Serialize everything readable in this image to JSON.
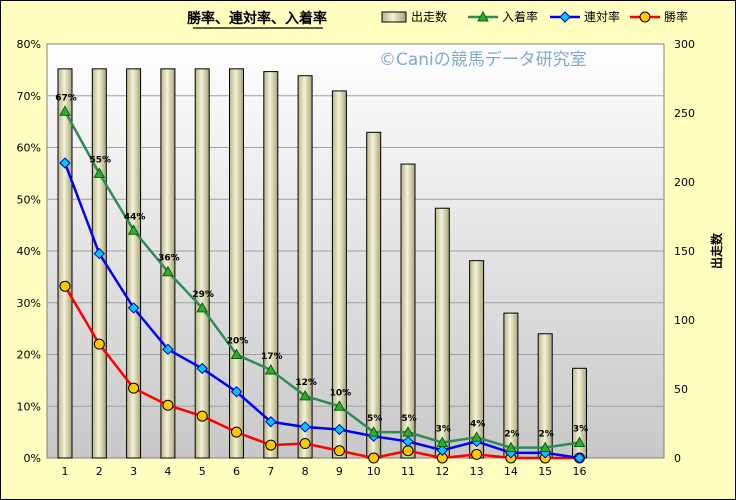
{
  "chart_data": {
    "type": "bar+line",
    "title": "勝率、連対率、入着率",
    "watermark": "©Caniの競馬データ研究室",
    "categories": [
      "1",
      "2",
      "3",
      "4",
      "5",
      "6",
      "7",
      "8",
      "9",
      "10",
      "11",
      "12",
      "13",
      "14",
      "15",
      "16"
    ],
    "y_left": {
      "ticks": [
        "0%",
        "10%",
        "20%",
        "30%",
        "40%",
        "50%",
        "60%",
        "70%",
        "80%"
      ],
      "range": [
        0,
        80
      ]
    },
    "y_right": {
      "label": "出走数",
      "ticks": [
        "0",
        "50",
        "100",
        "150",
        "200",
        "250",
        "300"
      ],
      "range": [
        0,
        300
      ]
    },
    "bars": {
      "name": "出走数",
      "color": "#d8d4a0",
      "values": [
        282,
        282,
        282,
        282,
        282,
        282,
        280,
        277,
        266,
        236,
        213,
        181,
        143,
        105,
        90,
        65
      ]
    },
    "series": [
      {
        "name": "入着率",
        "color": "#2e8b57",
        "marker": "triangle",
        "values": [
          67,
          55,
          44,
          36,
          29,
          20,
          17,
          12,
          10,
          5,
          5,
          3,
          4,
          2,
          2,
          3
        ],
        "labels": [
          "67%",
          "55%",
          "44%",
          "36%",
          "29%",
          "20%",
          "17%",
          "12%",
          "10%",
          "5%",
          "5%",
          "3%",
          "4%",
          "2%",
          "2%",
          "3%"
        ]
      },
      {
        "name": "連対率",
        "color": "#0000ff",
        "marker": "diamond",
        "values": [
          57,
          39.5,
          29,
          21,
          17.3,
          12.8,
          7,
          6,
          5.5,
          4.2,
          3.2,
          1.5,
          3.2,
          1,
          1,
          0
        ]
      },
      {
        "name": "勝率",
        "color": "#ff0000",
        "marker": "circle",
        "values": [
          33.2,
          22,
          13.5,
          10.2,
          8.1,
          5,
          2.5,
          2.8,
          1.4,
          0,
          1.4,
          0,
          0.7,
          0,
          0,
          0
        ]
      }
    ],
    "legend": {
      "position": "top"
    },
    "grid": true
  }
}
